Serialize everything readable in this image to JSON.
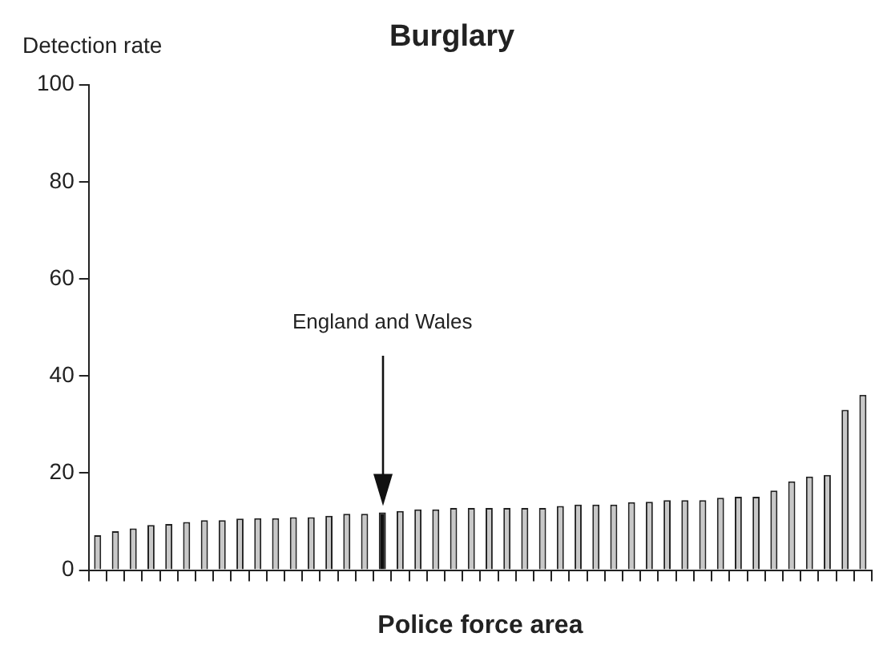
{
  "chart_data": {
    "type": "bar",
    "title": "Burglary",
    "ylabel": "Detection rate",
    "xlabel": "Police force area",
    "categories": [
      null,
      null,
      null,
      null,
      null,
      null,
      null,
      null,
      null,
      null,
      null,
      null,
      null,
      null,
      null,
      null,
      null,
      null,
      null,
      null,
      null,
      null,
      null,
      null,
      null,
      null,
      null,
      null,
      null,
      null,
      null,
      null,
      null,
      null,
      null,
      null,
      null,
      null,
      null,
      null,
      null,
      null,
      null,
      null
    ],
    "values": [
      7.2,
      8.0,
      8.6,
      9.3,
      9.5,
      9.9,
      10.3,
      10.3,
      10.6,
      10.7,
      10.7,
      10.9,
      10.9,
      11.2,
      11.6,
      11.6,
      11.9,
      12.2,
      12.5,
      12.5,
      12.8,
      12.8,
      12.8,
      12.8,
      12.8,
      12.8,
      13.2,
      13.5,
      13.5,
      13.5,
      14.0,
      14.1,
      14.4,
      14.4,
      14.4,
      14.9,
      15.1,
      15.1,
      16.4,
      18.3,
      19.3,
      19.6,
      33.0,
      36.1
    ],
    "colors": [
      "#c8c8c8",
      "#c8c8c8",
      "#c8c8c8",
      "#c8c8c8",
      "#c8c8c8",
      "#c8c8c8",
      "#c8c8c8",
      "#c8c8c8",
      "#c8c8c8",
      "#c8c8c8",
      "#c8c8c8",
      "#c8c8c8",
      "#c8c8c8",
      "#c8c8c8",
      "#c8c8c8",
      "#c8c8c8",
      "#111111",
      "#c8c8c8",
      "#c8c8c8",
      "#c8c8c8",
      "#c8c8c8",
      "#c8c8c8",
      "#c8c8c8",
      "#c8c8c8",
      "#c8c8c8",
      "#c8c8c8",
      "#c8c8c8",
      "#c8c8c8",
      "#c8c8c8",
      "#c8c8c8",
      "#c8c8c8",
      "#c8c8c8",
      "#c8c8c8",
      "#c8c8c8",
      "#c8c8c8",
      "#c8c8c8",
      "#c8c8c8",
      "#c8c8c8",
      "#c8c8c8",
      "#c8c8c8",
      "#c8c8c8",
      "#c8c8c8",
      "#c8c8c8",
      "#c8c8c8"
    ],
    "ylim": [
      0,
      100
    ],
    "yticks": [
      0,
      20,
      40,
      60,
      80,
      100
    ],
    "annotations": [
      "England and Wales"
    ],
    "grid": false,
    "legend": false
  }
}
